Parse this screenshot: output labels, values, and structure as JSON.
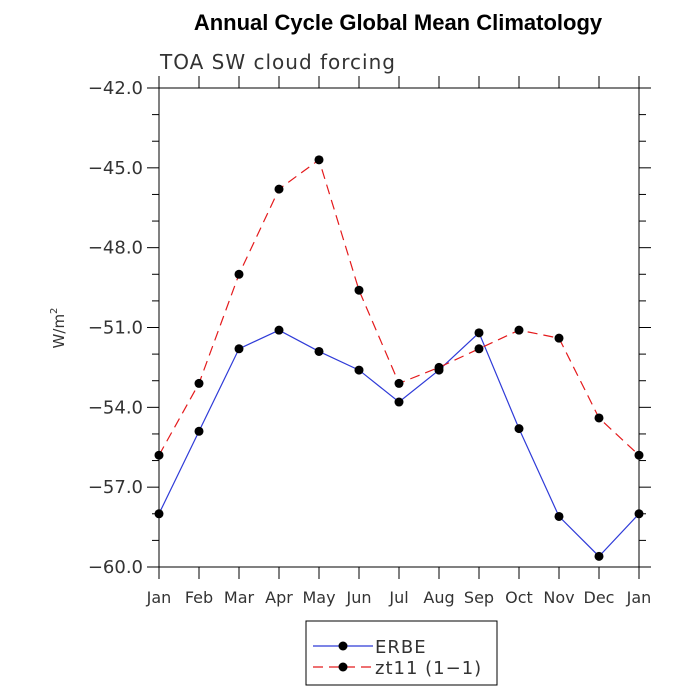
{
  "chart_data": {
    "type": "line",
    "title": "Annual Cycle Global Mean Climatology",
    "subtitle": "TOA SW cloud forcing",
    "ylabel": "W/m",
    "ylabel_sup": "2",
    "xlabel": "",
    "categories": [
      "Jan",
      "Feb",
      "Mar",
      "Apr",
      "May",
      "Jun",
      "Jul",
      "Aug",
      "Sep",
      "Oct",
      "Nov",
      "Dec",
      "Jan"
    ],
    "ylim": [
      -60.0,
      -42.0
    ],
    "yticks": [
      -42.0,
      -45.0,
      -48.0,
      -51.0,
      -54.0,
      -57.0,
      -60.0
    ],
    "ytick_labels": [
      "−42.0",
      "−45.0",
      "−48.0",
      "−51.0",
      "−54.0",
      "−57.0",
      "−60.0"
    ],
    "y_minor_step": 1.0,
    "grid": false,
    "legend_position": "bottom-center",
    "series": [
      {
        "name": "ERBE",
        "color": "#2f3bd8",
        "line_style": "solid",
        "marker": "filled-circle",
        "values": [
          -58.0,
          -54.9,
          -51.8,
          -51.1,
          -51.9,
          -52.6,
          -53.8,
          -52.6,
          -51.2,
          -54.8,
          -58.1,
          -59.6,
          -58.0
        ]
      },
      {
        "name": "zt11 (1−1)",
        "color": "#e41a1c",
        "line_style": "dashed",
        "marker": "filled-circle",
        "values": [
          -55.8,
          -53.1,
          -49.0,
          -45.8,
          -44.7,
          -49.6,
          -53.1,
          -52.5,
          -51.8,
          -51.1,
          -51.4,
          -54.4,
          -55.8
        ]
      }
    ]
  }
}
